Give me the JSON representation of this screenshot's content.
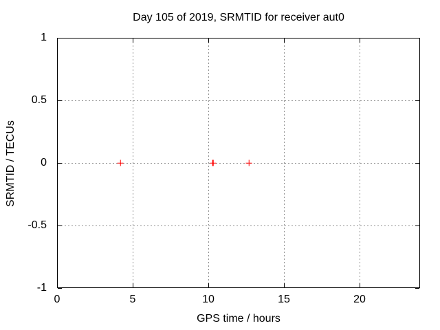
{
  "chart_data": {
    "type": "scatter",
    "title": "Day 105 of 2019, SRMTID for receiver aut0",
    "xlabel": "GPS time / hours",
    "ylabel": "SRMTID / TECUs",
    "xlim": [
      0,
      24
    ],
    "ylim": [
      -1,
      1
    ],
    "xticks": [
      {
        "value": 0,
        "label": "0"
      },
      {
        "value": 5,
        "label": "5"
      },
      {
        "value": 10,
        "label": "10"
      },
      {
        "value": 15,
        "label": "15"
      },
      {
        "value": 20,
        "label": "20"
      }
    ],
    "yticks": [
      {
        "value": -1,
        "label": "-1"
      },
      {
        "value": -0.5,
        "label": "-0.5"
      },
      {
        "value": 0,
        "label": "0"
      },
      {
        "value": 0.5,
        "label": "0.5"
      },
      {
        "value": 1,
        "label": "1"
      }
    ],
    "grid": true,
    "grid_style": "dotted",
    "grid_color": "#909090",
    "border_color": "#000000",
    "background_color": "#ffffff",
    "legend": "none",
    "series": [
      {
        "name": "SRMTID",
        "marker": "plus",
        "color": "#ff0000",
        "points": [
          {
            "x": 4.2,
            "y": 0
          },
          {
            "x": 10.3,
            "y": 0
          },
          {
            "x": 12.7,
            "y": 0
          }
        ]
      }
    ]
  }
}
